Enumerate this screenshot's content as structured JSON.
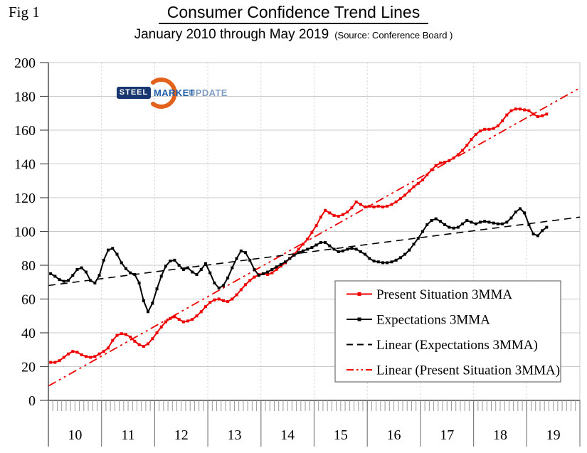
{
  "fig_label": "Fig 1",
  "title": "Consumer Confidence Trend Lines",
  "subtitle": "January 2010 through May 2019",
  "source": "(Source: Conference Board )",
  "logo": {
    "steel": "STEEL",
    "market": "MARKET",
    "update": "UPDATE"
  },
  "colors": {
    "present": "#ee0000",
    "expectations": "#000000",
    "grid": "#c9c9c9",
    "year_grid": "#d2d2d2",
    "axis": "#4d4d4d",
    "minor_tick": "#9a9a9a",
    "year_divider": "#7f7f7f",
    "legend_border": "#6f6f6f",
    "logo_orange": "#e2621c"
  },
  "chart_data": {
    "type": "line",
    "title": "Consumer Confidence Trend Lines",
    "x_range_label": "January 2010 through May 2019",
    "x_unit": "month",
    "x_years": [
      "10",
      "11",
      "12",
      "13",
      "14",
      "15",
      "16",
      "17",
      "18",
      "19"
    ],
    "months_per_year": 12,
    "x_axis_total_months": 120,
    "ylim": [
      0,
      200
    ],
    "y_ticks": [
      0,
      20,
      40,
      60,
      80,
      100,
      120,
      140,
      160,
      180,
      200
    ],
    "grid": true,
    "legend_position": "inside-lower-right",
    "series": [
      {
        "name": "Present Situation 3MMA",
        "color": "#ee0000",
        "style": "solid-with-square-markers",
        "start": "2010-01",
        "end": "2019-05",
        "values": [
          22.5,
          22.5,
          23.5,
          25.5,
          27.5,
          29,
          28.5,
          27,
          26,
          25.5,
          26,
          27.5,
          29,
          31,
          35.5,
          38.5,
          39.5,
          39,
          37.5,
          35,
          33,
          32,
          33.5,
          36.5,
          40,
          43.5,
          46.5,
          48.5,
          49.5,
          48,
          46.5,
          47,
          48,
          50,
          52.5,
          55.5,
          58,
          59.5,
          60,
          59,
          58.5,
          60,
          62.5,
          65.5,
          68.5,
          71,
          73,
          74.5,
          75,
          74.5,
          75.5,
          77.5,
          79.5,
          81.5,
          84,
          86.5,
          89.5,
          92.5,
          95.5,
          99.5,
          103.5,
          108.5,
          112.5,
          111,
          109.5,
          109,
          110,
          111.5,
          114,
          117.5,
          116,
          114.5,
          115,
          114.5,
          115,
          114.5,
          115,
          116,
          117.5,
          119.5,
          121.5,
          124,
          126.5,
          128.5,
          130.5,
          133.5,
          136.5,
          139,
          140.5,
          141,
          142,
          143.5,
          145.5,
          148,
          151,
          154.5,
          157.5,
          159.5,
          160.5,
          160.5,
          161,
          162.5,
          165.5,
          169,
          171.5,
          172.5,
          172.5,
          172,
          171.5,
          169.5,
          168,
          168.5,
          169.5
        ]
      },
      {
        "name": "Expectations 3MMA",
        "color": "#000000",
        "style": "solid-with-square-markers",
        "start": "2010-01",
        "end": "2019-05",
        "values": [
          75,
          73.5,
          71.5,
          70.5,
          71,
          74,
          77.5,
          78.5,
          76,
          71,
          69.5,
          74,
          83,
          89,
          90,
          86.5,
          81.5,
          78,
          75.5,
          74.5,
          69.5,
          59,
          52.5,
          57.5,
          66,
          73.5,
          79.5,
          82.5,
          83,
          80,
          77.5,
          78.5,
          76,
          74.5,
          77.5,
          81,
          75.5,
          69.5,
          66.5,
          68,
          72.5,
          78.5,
          84,
          88.5,
          87.5,
          83,
          77.5,
          74,
          75,
          76,
          77.5,
          79,
          80.5,
          82,
          84,
          86,
          87.5,
          88.5,
          89.5,
          90.5,
          92,
          93.5,
          93.5,
          91.5,
          89.5,
          88,
          88.5,
          89.5,
          90,
          89.5,
          88,
          86.5,
          84,
          82.5,
          82,
          81.5,
          81.5,
          82,
          83,
          84.5,
          86.5,
          89,
          92.5,
          96,
          100,
          104,
          106.5,
          107.5,
          106,
          104,
          102.5,
          102,
          102.5,
          104.5,
          106.5,
          105.5,
          104.5,
          105.5,
          106,
          105.5,
          105,
          104.5,
          104.5,
          105.5,
          108,
          111.5,
          113.5,
          111,
          104,
          98.5,
          97.5,
          100.5,
          102.5
        ]
      }
    ],
    "trend_lines": [
      {
        "name": "Linear (Expectations 3MMA)",
        "color": "#000000",
        "style": "dashed",
        "start_value": 68,
        "end_value": 108.5
      },
      {
        "name": "Linear (Present Situation 3MMA)",
        "color": "#ee0000",
        "style": "dash-dot-dot",
        "start_value": 8.5,
        "end_value": 185
      }
    ],
    "legend": [
      {
        "label": "Present Situation 3MMA",
        "swatch": "red-solid-marker"
      },
      {
        "label": "Expectations 3MMA",
        "swatch": "black-solid-marker"
      },
      {
        "label": "Linear (Expectations 3MMA)",
        "swatch": "black-dashed"
      },
      {
        "label": "Linear (Present Situation 3MMA)",
        "swatch": "red-dash-dot-dot"
      }
    ]
  }
}
